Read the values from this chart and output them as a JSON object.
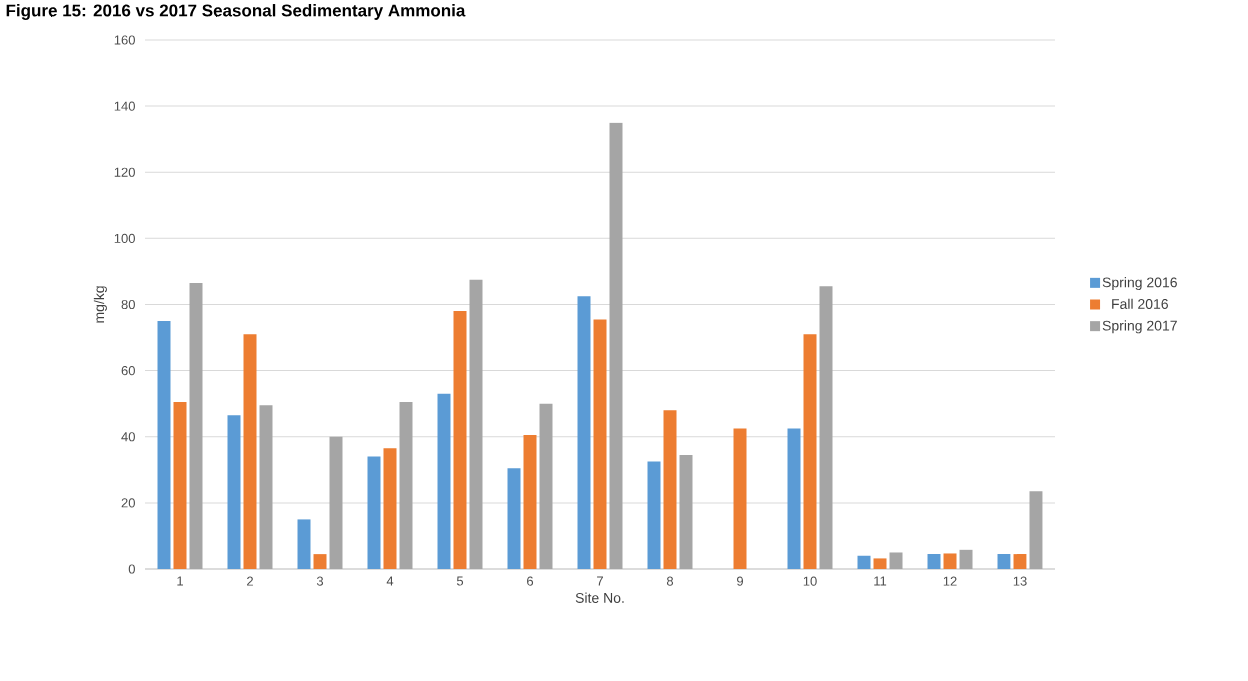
{
  "chart_data": {
    "type": "bar",
    "title": "Figure 15: 2016 vs 2017 Seasonal Sedimentary Ammonia",
    "xlabel": "Site No.",
    "ylabel": "mg/kg",
    "categories": [
      "1",
      "2",
      "3",
      "4",
      "5",
      "6",
      "7",
      "8",
      "9",
      "10",
      "11",
      "12",
      "13"
    ],
    "series": [
      {
        "name": "Spring 2016",
        "color": "#5b9bd5",
        "values": [
          75,
          46.5,
          15,
          34,
          53,
          30.5,
          82.5,
          32.5,
          null,
          42.5,
          4,
          4.5,
          4.5
        ]
      },
      {
        "name": "Fall 2016",
        "color": "#ed7d31",
        "values": [
          50.5,
          71,
          4.5,
          36.5,
          78,
          40.5,
          75.5,
          48,
          42.5,
          71,
          3.2,
          4.7,
          4.5
        ]
      },
      {
        "name": "Spring 2017",
        "color": "#a5a5a5",
        "values": [
          86.5,
          49.5,
          40,
          50.5,
          87.5,
          50,
          135,
          34.5,
          null,
          85.5,
          5,
          5.8,
          23.5
        ]
      }
    ],
    "ylim": [
      0,
      160
    ],
    "yticks": [
      0,
      20,
      40,
      60,
      80,
      100,
      120,
      140,
      160
    ],
    "grid": "y",
    "legend": "right"
  }
}
